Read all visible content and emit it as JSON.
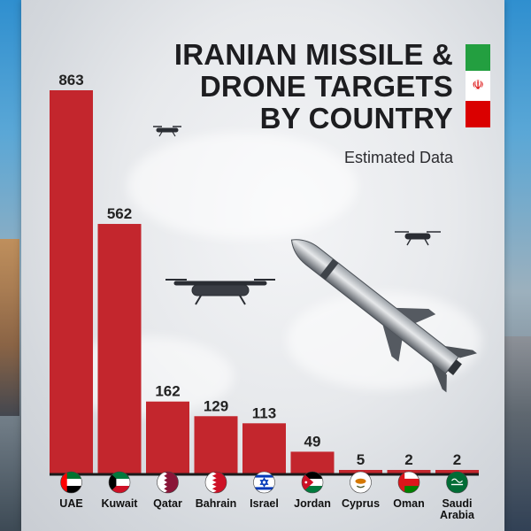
{
  "title_lines": [
    "IRANIAN MISSILE &",
    "DRONE TARGETS",
    "BY COUNTRY"
  ],
  "subtitle": "Estimated Data",
  "chart_data": {
    "type": "bar",
    "title": "IRANIAN MISSILE & DRONE TARGETS BY COUNTRY",
    "subtitle": "Estimated Data",
    "categories": [
      "UAE",
      "Kuwait",
      "Qatar",
      "Bahrain",
      "Israel",
      "Jordan",
      "Cyprus",
      "Oman",
      "Saudi Arabia"
    ],
    "values": [
      863,
      562,
      162,
      129,
      113,
      49,
      5,
      2,
      2
    ],
    "category_lines": [
      [
        "UAE"
      ],
      [
        "Kuwait"
      ],
      [
        "Qatar"
      ],
      [
        "Bahrain"
      ],
      [
        "Israel"
      ],
      [
        "Jordan"
      ],
      [
        "Cyprus"
      ],
      [
        "Oman"
      ],
      [
        "Saudi",
        "Arabia"
      ]
    ],
    "bar_color": "#c3262d",
    "xlabel": "",
    "ylabel": "",
    "ylim": [
      0,
      863
    ],
    "grid": false,
    "data_labels": true,
    "flag_icons": [
      "uae-flag-icon",
      "kuwait-flag-icon",
      "qatar-flag-icon",
      "bahrain-flag-icon",
      "israel-flag-icon",
      "jordan-flag-icon",
      "cyprus-flag-icon",
      "oman-flag-icon",
      "saudi-arabia-flag-icon"
    ]
  }
}
